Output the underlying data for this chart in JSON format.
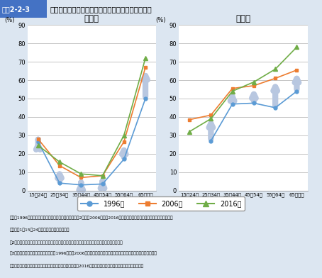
{
  "title_box": "図表2-2-3",
  "title_main": "男女別・年齢階級別　非正規雇用労働者比率の推移",
  "male_title": "男　性",
  "female_title": "女　性",
  "categories": [
    "15～24歳",
    "25～34歳",
    "35～44歳",
    "45～54歳",
    "55～64歳",
    "65歳以上"
  ],
  "ylabel": "(%)",
  "ylim": [
    0,
    90
  ],
  "yticks": [
    0,
    10,
    20,
    30,
    40,
    50,
    60,
    70,
    80,
    90
  ],
  "male_1996": [
    26.5,
    4.0,
    3.0,
    3.5,
    17.0,
    50.0
  ],
  "male_2006": [
    28.0,
    13.5,
    7.0,
    8.0,
    26.5,
    67.0
  ],
  "male_2016": [
    24.5,
    15.5,
    9.0,
    8.0,
    30.0,
    72.0
  ],
  "female_1996": [
    null,
    27.0,
    47.0,
    47.5,
    45.0,
    54.0
  ],
  "female_2006": [
    38.5,
    41.0,
    55.5,
    57.0,
    61.0,
    65.5
  ],
  "female_2016": [
    32.0,
    39.0,
    54.0,
    59.0,
    66.0,
    78.0
  ],
  "color_1996": "#5b9bd5",
  "color_2006": "#ed7d31",
  "color_2016": "#70ad47",
  "arrow_color": "#b8c7e0",
  "legend_labels": [
    "1996年",
    "2006年",
    "2016年"
  ],
  "bg_color": "#dce6f1",
  "plot_bg": "#ffffff",
  "header_bg": "#4472c4",
  "header_text_box_bg": "#4472c4",
  "header_text": "#ffffff",
  "note_lines": [
    "資料：1996年は総務省統計局「労働力調査特別調査」（2月）、2006年及び2016年は総務省統計局「労働力調査（詳細集計）」",
    "（注）　1．15～24歳は、在学中の者を除く。",
    "　2．比率は、「正規の職員・従業員」と「非正規の職員・従業員」の合計に対するものである。",
    "　3．「非正規雇用労働者」について、1996年及び2006年の数値は「パート・アルバイト」、「労働者派遣事業所の派",
    "　　遣社員」、「契約社員・嘱託」及び「その他」の合計、2016年は「非正規の職員・従業員」の項目の数値。"
  ]
}
